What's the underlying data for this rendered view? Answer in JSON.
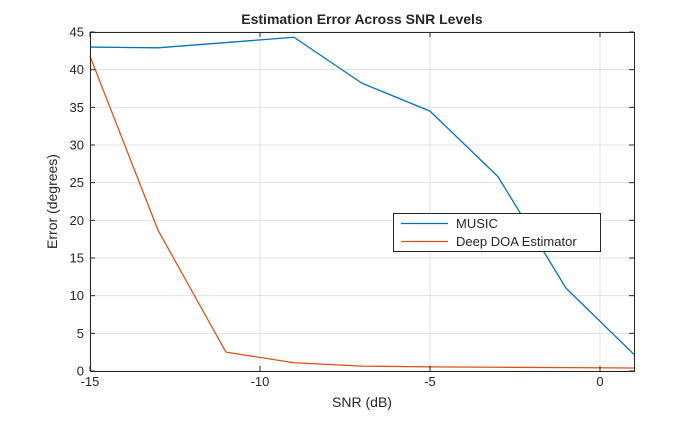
{
  "chart_data": {
    "type": "line",
    "title": "Estimation Error Across SNR Levels",
    "xlabel": "SNR (dB)",
    "ylabel": "Error (degrees)",
    "x": [
      -15,
      -13,
      -11,
      -9,
      -7,
      -5,
      -3,
      -1,
      1
    ],
    "series": [
      {
        "name": "MUSIC",
        "color": "#0072BD",
        "values": [
          43.0,
          42.9,
          43.6,
          44.3,
          38.2,
          34.5,
          25.8,
          11.0,
          2.2
        ]
      },
      {
        "name": "Deep DOA Estimator",
        "color": "#D95319",
        "values": [
          41.8,
          18.7,
          2.5,
          1.1,
          0.65,
          0.55,
          0.5,
          0.45,
          0.4
        ]
      }
    ],
    "xlim": [
      -15,
      1
    ],
    "ylim": [
      0,
      45
    ],
    "xticks": [
      -15,
      -10,
      -5,
      0
    ],
    "yticks": [
      0,
      5,
      10,
      15,
      20,
      25,
      30,
      35,
      40,
      45
    ],
    "grid": true,
    "legend_position": "middle-right",
    "legend_entries": [
      "MUSIC",
      "Deep DOA Estimator"
    ],
    "axis_color": "#262626",
    "grid_color": "#e0e0e0",
    "background_color": "#ffffff"
  }
}
